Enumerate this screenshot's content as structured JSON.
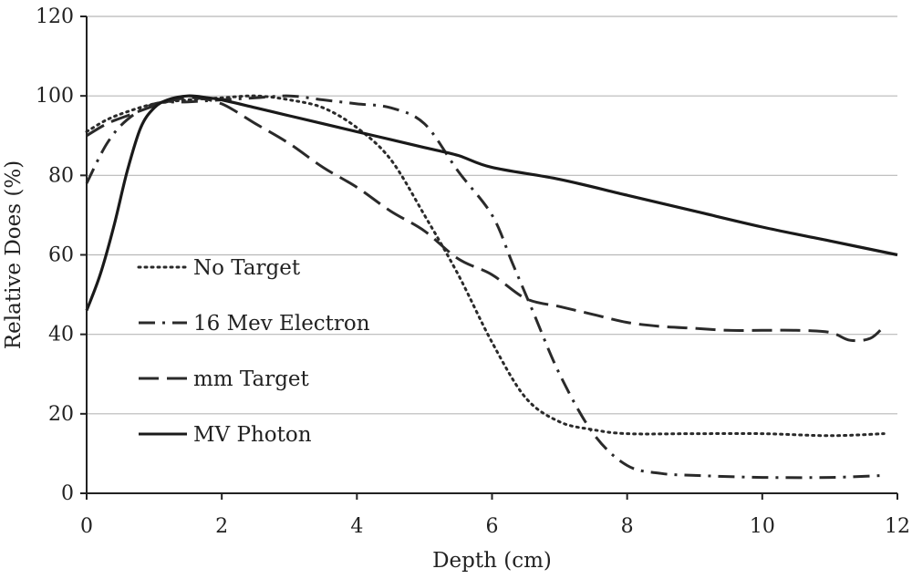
{
  "chart_data": {
    "type": "line",
    "title": "",
    "xlabel": "Depth (cm)",
    "ylabel": "Relative Does (%)",
    "xlim": [
      0,
      12
    ],
    "ylim": [
      0,
      120
    ],
    "x_ticks": [
      0,
      2,
      4,
      6,
      8,
      10,
      12
    ],
    "y_ticks": [
      0,
      20,
      40,
      60,
      80,
      100,
      120
    ],
    "x_tick_labels": [
      "0",
      "2",
      "4",
      "6",
      "8",
      "10",
      "12"
    ],
    "y_tick_labels": [
      "0",
      "20",
      "40",
      "60",
      "80",
      "100",
      "120"
    ],
    "grid": "horizontal",
    "legend_position": "left-inside",
    "series": [
      {
        "name": "No Target",
        "style": "dotted",
        "color": "#2a2a2a",
        "x": [
          0,
          0.3,
          0.6,
          1.0,
          1.5,
          2.0,
          2.5,
          3.0,
          3.5,
          4.0,
          4.5,
          5.0,
          5.5,
          6.0,
          6.5,
          7.0,
          7.5,
          8.0,
          9.0,
          10.0,
          11.0,
          11.8
        ],
        "y": [
          91,
          94,
          96,
          98,
          99,
          99.5,
          100,
          99,
          97,
          92,
          84,
          70,
          55,
          38,
          24,
          18,
          16,
          15,
          15,
          15,
          14.5,
          15
        ]
      },
      {
        "name": "16 Mev Electron",
        "style": "dash-dot",
        "color": "#2a2a2a",
        "x": [
          0,
          0.3,
          0.6,
          1.0,
          1.5,
          2.0,
          2.5,
          3.0,
          3.5,
          4.0,
          4.5,
          5.0,
          5.5,
          6.0,
          6.3,
          6.6,
          7.0,
          7.5,
          8.0,
          8.5,
          9.0,
          10.0,
          11.0,
          11.8
        ],
        "y": [
          78,
          88,
          94,
          98,
          98.5,
          99,
          99.5,
          100,
          99,
          98,
          97,
          93,
          81,
          70,
          58,
          46,
          30,
          15,
          7,
          5,
          4.5,
          4,
          4,
          4.5
        ]
      },
      {
        "name": "mm Target",
        "style": "dashed",
        "color": "#2a2a2a",
        "x": [
          0,
          0.3,
          0.6,
          1.0,
          1.3,
          1.6,
          2.0,
          2.5,
          3.0,
          3.5,
          4.0,
          4.5,
          5.0,
          5.5,
          6.0,
          6.5,
          7.0,
          7.5,
          8.0,
          8.5,
          9.0,
          9.5,
          10.0,
          10.5,
          11.0,
          11.3,
          11.6,
          11.8
        ],
        "y": [
          90,
          93,
          95,
          97.5,
          99,
          99.5,
          98,
          93,
          88,
          82,
          77,
          71,
          66,
          59,
          55,
          49,
          47,
          45,
          43,
          42,
          41.5,
          41,
          41,
          41,
          40.5,
          38.5,
          39,
          42
        ]
      },
      {
        "name": "MV Photon",
        "style": "solid",
        "color": "#1a1a1a",
        "x": [
          0,
          0.2,
          0.4,
          0.6,
          0.8,
          1.0,
          1.2,
          1.5,
          1.8,
          2.0,
          2.5,
          3.0,
          3.5,
          4.0,
          4.5,
          5.0,
          5.5,
          6.0,
          7.0,
          8.0,
          9.0,
          10.0,
          11.0,
          12.0
        ],
        "y": [
          46,
          55,
          67,
          81,
          92,
          97,
          99,
          100,
          99.5,
          99,
          97,
          95,
          93,
          91,
          89,
          87,
          85,
          82,
          79,
          75,
          71,
          67,
          63.5,
          60
        ]
      }
    ]
  }
}
